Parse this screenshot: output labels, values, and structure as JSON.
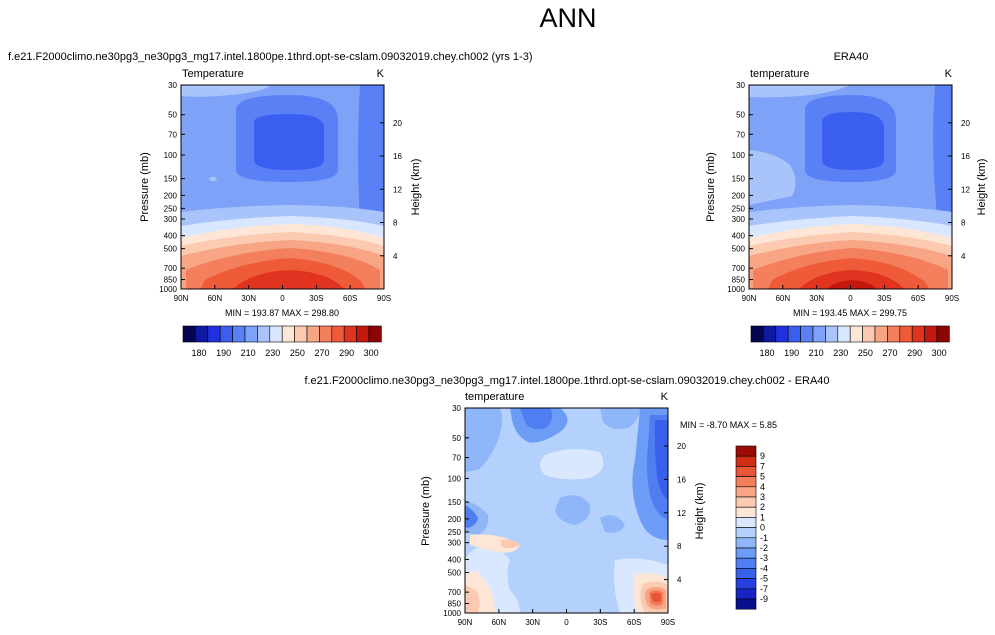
{
  "page": {
    "title": "ANN"
  },
  "panels": [
    {
      "id": "model",
      "header": "f.e21.F2000climo.ne30pg3_ne30pg3_mg17.intel.1800pe.1thrd.opt-se-cslam.09032019.chey.ch002 (yrs 1-3)",
      "var_label": "Temperature",
      "units": "K",
      "stats": "MIN = 193.87  MAX = 298.80"
    },
    {
      "id": "obs",
      "header": "ERA40",
      "var_label": "temperature",
      "units": "K",
      "stats": "MIN = 193.45  MAX = 299.75"
    },
    {
      "id": "diff",
      "header": "f.e21.F2000climo.ne30pg3_ne30pg3_mg17.intel.1800pe.1thrd.opt-se-cslam.09032019.chey.ch002 - ERA40",
      "var_label": "temperature",
      "units": "K",
      "stats": "MIN = -8.70  MAX =  5.85"
    }
  ],
  "chart_data": [
    {
      "type": "heatmap",
      "title": "f.e21.F2000climo.ne30pg3_ne30pg3_mg17.intel.1800pe.1thrd.opt-se-cslam.09032019.chey.ch002 (yrs 1-3)",
      "var": "Temperature",
      "units": "K",
      "xlabel": "",
      "ylabel": "Pressure (mb)",
      "ylabel_right": "Height (km)",
      "x_ticks": [
        "90N",
        "60N",
        "30N",
        "0",
        "30S",
        "60S",
        "90S"
      ],
      "y_ticks": [
        "30",
        "50",
        "70",
        "100",
        "150",
        "200",
        "250",
        "300",
        "400",
        "500",
        "700",
        "850",
        "1000"
      ],
      "height_ticks": [
        "4",
        "8",
        "12",
        "16",
        "20"
      ],
      "colorbar_labels": [
        "180",
        "190",
        "210",
        "230",
        "250",
        "270",
        "290",
        "300"
      ],
      "colorbar_orientation": "horizontal",
      "min": 193.87,
      "max": 298.8
    },
    {
      "type": "heatmap",
      "title": "ERA40",
      "var": "temperature",
      "units": "K",
      "xlabel": "",
      "ylabel": "Pressure (mb)",
      "ylabel_right": "Height (km)",
      "x_ticks": [
        "90N",
        "60N",
        "30N",
        "0",
        "30S",
        "60S",
        "90S"
      ],
      "y_ticks": [
        "30",
        "50",
        "70",
        "100",
        "150",
        "200",
        "250",
        "300",
        "400",
        "500",
        "700",
        "850",
        "1000"
      ],
      "height_ticks": [
        "4",
        "8",
        "12",
        "16",
        "20"
      ],
      "colorbar_labels": [
        "180",
        "190",
        "210",
        "230",
        "250",
        "270",
        "290",
        "300"
      ],
      "colorbar_orientation": "horizontal",
      "min": 193.45,
      "max": 299.75
    },
    {
      "type": "heatmap",
      "title": "f.e21.F2000climo.ne30pg3_ne30pg3_mg17.intel.1800pe.1thrd.opt-se-cslam.09032019.chey.ch002 - ERA40",
      "var": "temperature",
      "units": "K",
      "xlabel": "",
      "ylabel": "Pressure (mb)",
      "ylabel_right": "Height (km)",
      "x_ticks": [
        "90N",
        "60N",
        "30N",
        "0",
        "30S",
        "60S",
        "90S"
      ],
      "y_ticks": [
        "30",
        "50",
        "70",
        "100",
        "150",
        "200",
        "250",
        "300",
        "400",
        "500",
        "700",
        "850",
        "1000"
      ],
      "height_ticks": [
        "4",
        "8",
        "12",
        "16",
        "20"
      ],
      "colorbar_labels": [
        "9",
        "7",
        "5",
        "4",
        "3",
        "2",
        "1",
        "0",
        "-1",
        "-2",
        "-3",
        "-4",
        "-5",
        "-7",
        "-9"
      ],
      "colorbar_orientation": "vertical",
      "min": -8.7,
      "max": 5.85
    }
  ],
  "colors": {
    "temp_scale": [
      "#04064f",
      "#0f1aa2",
      "#2030e0",
      "#3a5ff0",
      "#5a80f5",
      "#7ea2f8",
      "#a9c4fb",
      "#d8e6ff",
      "#fde6d6",
      "#fbcab0",
      "#f7a585",
      "#f47f5c",
      "#ef5a38",
      "#e13420",
      "#c3180e",
      "#8c0505"
    ],
    "diff_scale": [
      "#08108f",
      "#1524c3",
      "#2440e0",
      "#3860eb",
      "#4e7ef2",
      "#6d9cf6",
      "#8fb6f9",
      "#b4d0fc",
      "#d9e8ff",
      "#fde6d6",
      "#fbcab0",
      "#f7a585",
      "#f27e5b",
      "#e85636",
      "#cf2d16",
      "#9c0c06"
    ]
  }
}
